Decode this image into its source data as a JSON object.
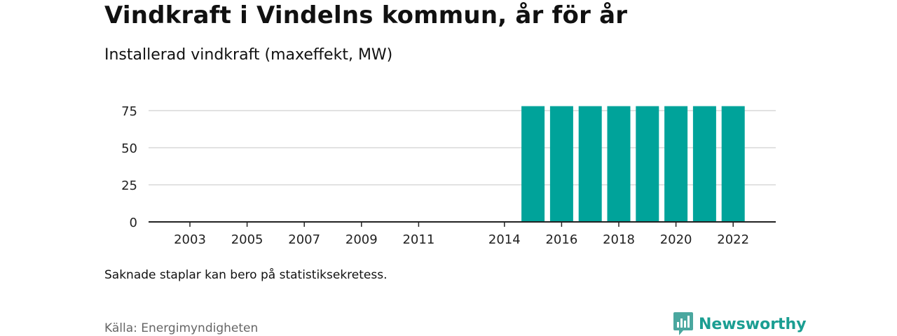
{
  "title": "Vindkraft i Vindelns kommun, år för år",
  "subtitle": "Installerad vindkraft (maxeffekt, MW)",
  "note": "Saknade staplar kan bero på statistiksekretess.",
  "source": "Källa: Energimyndigheten",
  "brand": {
    "name": "Newsworthy",
    "icon": "newsworthy-logo-icon"
  },
  "colors": {
    "bar": "#00a39a",
    "grid": "#d9d9d9",
    "axis": "#222222",
    "brand": "#1b9e92"
  },
  "chart_data": {
    "type": "bar",
    "title": "Vindkraft i Vindelns kommun, år för år",
    "subtitle": "Installerad vindkraft (maxeffekt, MW)",
    "categories": [
      "2015",
      "2016",
      "2017",
      "2018",
      "2019",
      "2020",
      "2021",
      "2022"
    ],
    "values": [
      78,
      78,
      78,
      78,
      78,
      78,
      78,
      78
    ],
    "x_range": [
      2002,
      2023
    ],
    "x_ticks": [
      "2003",
      "2005",
      "2007",
      "2009",
      "2011",
      "2014",
      "2016",
      "2018",
      "2020",
      "2022"
    ],
    "y_ticks": [
      0,
      25,
      50,
      75
    ],
    "ylim": [
      0,
      80
    ],
    "xlabel": "",
    "ylabel": "",
    "grid": true,
    "legend": "none"
  }
}
